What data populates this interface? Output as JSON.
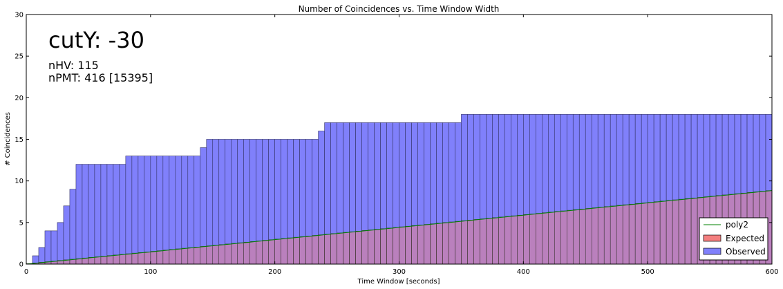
{
  "chart_data": {
    "type": "bar",
    "title": "Number of Coincidences vs. Time Window Width",
    "xlabel": "Time Window [seconds]",
    "ylabel": "# Coincidences",
    "xlim": [
      0,
      600
    ],
    "ylim": [
      0,
      30
    ],
    "xticks": [
      "0",
      "100",
      "200",
      "300",
      "400",
      "500",
      "600"
    ],
    "yticks": [
      "0",
      "5",
      "10",
      "15",
      "20",
      "25",
      "30"
    ],
    "grid": false,
    "legend_position": "bottom-right",
    "bin_width": 5,
    "annotations": {
      "cut": "cutY: -30",
      "nhv": "nHV: 115",
      "npmt": "nPMT: 416 [15395]"
    },
    "series": [
      {
        "name": "Observed",
        "kind": "histogram",
        "color": "#8080fb",
        "bin_start": 0,
        "values": [
          0,
          1,
          2,
          4,
          4,
          5,
          7,
          9,
          12,
          12,
          12,
          12,
          12,
          12,
          12,
          12,
          13,
          13,
          13,
          13,
          13,
          13,
          13,
          13,
          13,
          13,
          13,
          13,
          14,
          15,
          15,
          15,
          15,
          15,
          15,
          15,
          15,
          15,
          15,
          15,
          15,
          15,
          15,
          15,
          15,
          15,
          15,
          16,
          17,
          17,
          17,
          17,
          17,
          17,
          17,
          17,
          17,
          17,
          17,
          17,
          17,
          17,
          17,
          17,
          17,
          17,
          17,
          17,
          17,
          17,
          18,
          18,
          18,
          18,
          18,
          18,
          18,
          18,
          18,
          18,
          18,
          18,
          18,
          18,
          18,
          18,
          18,
          18,
          18,
          18,
          18,
          18,
          18,
          18,
          18,
          18,
          18,
          18,
          18,
          18,
          18,
          18,
          18,
          18,
          18,
          18,
          18,
          18,
          18,
          18,
          18,
          18,
          18,
          18,
          18,
          18,
          18,
          18,
          18,
          18
        ]
      },
      {
        "name": "Expected",
        "kind": "histogram",
        "color": "#f37f7f",
        "bin_start": 0,
        "fit_coefficients": [
          0,
          0.01467,
          1e-07
        ]
      },
      {
        "name": "poly2",
        "kind": "line",
        "color": "#008000",
        "coefficients": [
          0,
          0.01467,
          1e-07
        ]
      }
    ]
  }
}
